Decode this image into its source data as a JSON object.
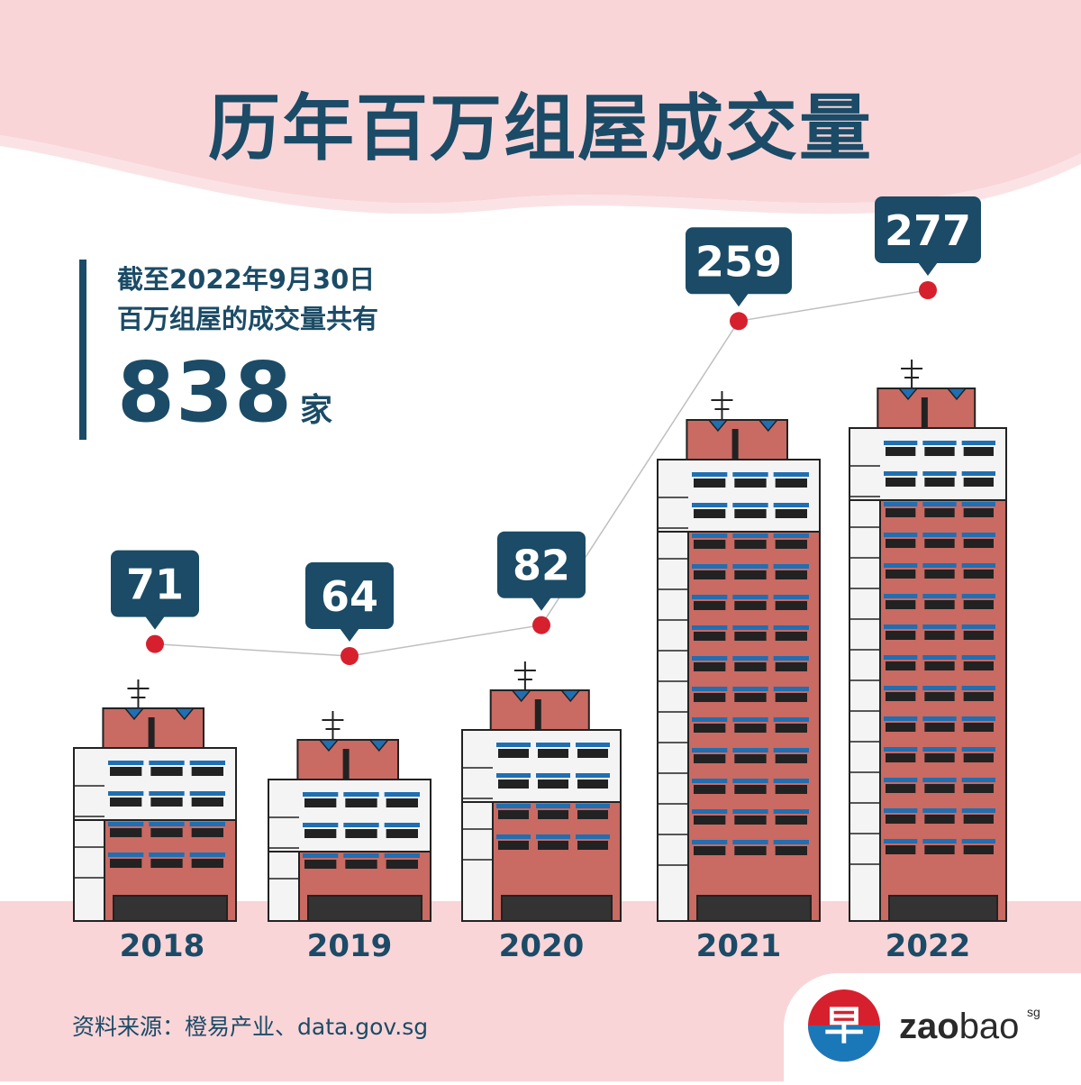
{
  "title": "历年百万组屋成交量",
  "summary": {
    "line1": "截至2022年9月30日",
    "line2": "百万组屋的成交量共有",
    "total": "838",
    "unit": "家"
  },
  "source": "资料来源：橙易产业、data.gov.sg",
  "logo": {
    "glyph": "早",
    "word_bold": "zao",
    "word_light": "bao",
    "suffix": "sg"
  },
  "colors": {
    "navy": "#1b4b66",
    "marker": "#d7202e",
    "line": "#bfbfbf",
    "pink": "#f9d5d8",
    "brick": "#c96a63",
    "brick_dark": "#b0554f",
    "window_blue": "#1f6fb2"
  },
  "chart_data": {
    "type": "line",
    "categories": [
      "2018",
      "2019",
      "2020",
      "2021",
      "2022"
    ],
    "values": [
      71,
      64,
      82,
      259,
      277
    ],
    "data_labels": [
      "71",
      "64",
      "82",
      "259",
      "277"
    ],
    "title": "历年百万组屋成交量",
    "xlabel": "",
    "ylabel": "",
    "grid": false,
    "legend": "none",
    "decoration": "building-illustration-per-year"
  }
}
